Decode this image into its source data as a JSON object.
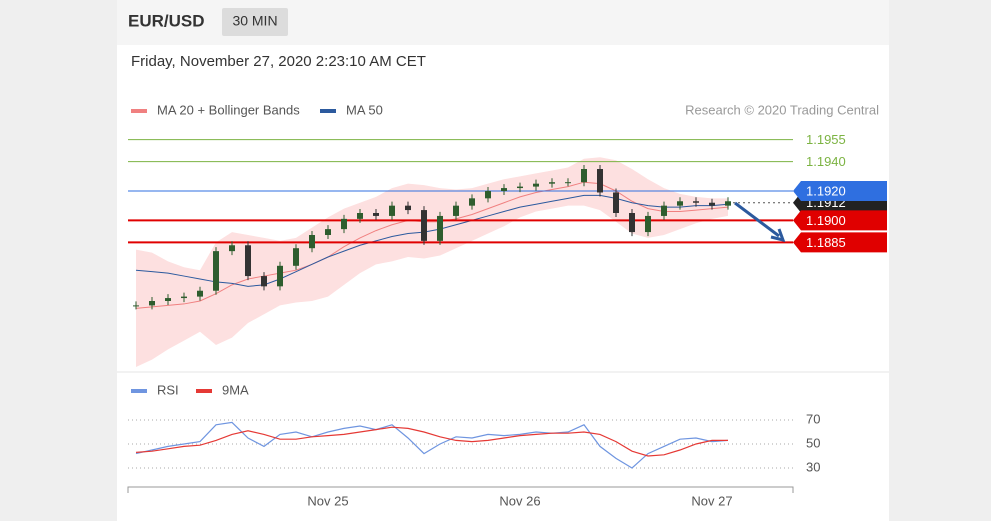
{
  "header": {
    "symbol": "EUR/USD",
    "interval": "30 MIN",
    "timestamp": "Friday, November 27, 2020 2:23:10 AM CET"
  },
  "chart_data": [
    {
      "type": "candlestick",
      "credit": "Research © 2020 Trading Central",
      "ylim": [
        1.18,
        1.1965
      ],
      "up_color": "#2e5d2e",
      "down_color": "#333333",
      "close": [
        1.1842,
        1.1845,
        1.1847,
        1.1848,
        1.1852,
        1.1879,
        1.1883,
        1.1862,
        1.1855,
        1.1869,
        1.1881,
        1.189,
        1.1894,
        1.1901,
        1.1905,
        1.1903,
        1.191,
        1.1907,
        1.1886,
        1.1903,
        1.191,
        1.1915,
        1.192,
        1.1922,
        1.1923,
        1.1925,
        1.1926,
        1.1926,
        1.1935,
        1.1919,
        1.1905,
        1.1892,
        1.1903,
        1.191,
        1.1913,
        1.1912,
        1.191,
        1.1913
      ],
      "series": [
        {
          "name": "MA 20 + Bollinger Bands",
          "color": "#f08080",
          "band_color": "#fde0e0",
          "values": [
            1.184,
            1.1841,
            1.1842,
            1.1843,
            1.1845,
            1.185,
            1.1856,
            1.186,
            1.1862,
            1.1864,
            1.1866,
            1.187,
            1.1875,
            1.1882,
            1.1888,
            1.1893,
            1.1897,
            1.19,
            1.1899,
            1.1899,
            1.1901,
            1.1904,
            1.1908,
            1.1912,
            1.1916,
            1.1919,
            1.1921,
            1.1923,
            1.1926,
            1.1925,
            1.192,
            1.1913,
            1.1908,
            1.1906,
            1.1906,
            1.1907,
            1.1908,
            1.1909
          ],
          "upper": [
            1.188,
            1.1878,
            1.1872,
            1.1868,
            1.1866,
            1.1885,
            1.1892,
            1.189,
            1.1888,
            1.1886,
            1.1888,
            1.1895,
            1.1902,
            1.1908,
            1.1912,
            1.1916,
            1.1922,
            1.1925,
            1.1924,
            1.1922,
            1.1921,
            1.1922,
            1.1925,
            1.1928,
            1.193,
            1.1932,
            1.1934,
            1.1936,
            1.1942,
            1.1943,
            1.1941,
            1.1935,
            1.1928,
            1.1922,
            1.1918,
            1.1916,
            1.1915,
            1.1915
          ],
          "lower": [
            1.18,
            1.1805,
            1.1812,
            1.1818,
            1.1824,
            1.1815,
            1.182,
            1.183,
            1.1836,
            1.1842,
            1.1844,
            1.1845,
            1.1848,
            1.1856,
            1.1864,
            1.187,
            1.1872,
            1.1875,
            1.1874,
            1.1876,
            1.1881,
            1.1886,
            1.1891,
            1.1896,
            1.1902,
            1.1906,
            1.1908,
            1.191,
            1.191,
            1.1907,
            1.1899,
            1.1891,
            1.1888,
            1.189,
            1.1894,
            1.1898,
            1.1901,
            1.1903
          ]
        },
        {
          "name": "MA 50",
          "color": "#2c5a9e",
          "values": [
            1.1866,
            1.1865,
            1.1864,
            1.1862,
            1.186,
            1.1858,
            1.1857,
            1.1855,
            1.1856,
            1.186,
            1.1865,
            1.187,
            1.1875,
            1.1879,
            1.1883,
            1.1886,
            1.1889,
            1.1891,
            1.1892,
            1.1894,
            1.1897,
            1.19,
            1.1903,
            1.1906,
            1.1909,
            1.1911,
            1.1913,
            1.1915,
            1.1917,
            1.1917,
            1.1915,
            1.1912,
            1.191,
            1.1909,
            1.1909,
            1.191,
            1.191,
            1.1911
          ]
        }
      ],
      "levels": [
        {
          "value": 1.1955,
          "color": "#7cb342",
          "boxed": false
        },
        {
          "value": 1.194,
          "label": "1.1940",
          "color": "#7cb342",
          "boxed": false
        },
        {
          "value": 1.1912,
          "color": "#222222",
          "boxed": true
        },
        {
          "value": 1.192,
          "label": "1.1920",
          "color": "#2f6fe0",
          "boxed": true
        },
        {
          "value": 1.19,
          "label": "1.1900",
          "color": "#e00000",
          "boxed": true
        },
        {
          "value": 1.1885,
          "color": "#e00000",
          "boxed": true
        }
      ]
    },
    {
      "type": "line",
      "ylim": [
        20,
        80
      ],
      "yticks": [
        70,
        50,
        30
      ],
      "categories": [
        null,
        null,
        null,
        null,
        null,
        null,
        null,
        null,
        null,
        null,
        null,
        null,
        "Nov 25",
        null,
        null,
        null,
        null,
        null,
        null,
        null,
        null,
        null,
        null,
        null,
        "Nov 26",
        null,
        null,
        null,
        null,
        null,
        null,
        null,
        null,
        null,
        null,
        null,
        "Nov 27",
        null
      ],
      "series": [
        {
          "name": "RSI",
          "color": "#6f95e0",
          "values": [
            42,
            45,
            48,
            50,
            52,
            66,
            68,
            55,
            48,
            58,
            60,
            56,
            60,
            63,
            65,
            62,
            66,
            55,
            42,
            50,
            56,
            55,
            58,
            57,
            58,
            60,
            59,
            60,
            66,
            48,
            38,
            30,
            42,
            48,
            54,
            55,
            52,
            53
          ]
        },
        {
          "name": "9MA",
          "color": "#e53935",
          "values": [
            43,
            44,
            46,
            48,
            49,
            53,
            58,
            61,
            58,
            54,
            54,
            56,
            57,
            58,
            60,
            62,
            64,
            63,
            60,
            56,
            53,
            52,
            53,
            55,
            57,
            58,
            59,
            59,
            60,
            58,
            52,
            44,
            40,
            41,
            45,
            50,
            53,
            53
          ]
        }
      ]
    }
  ]
}
